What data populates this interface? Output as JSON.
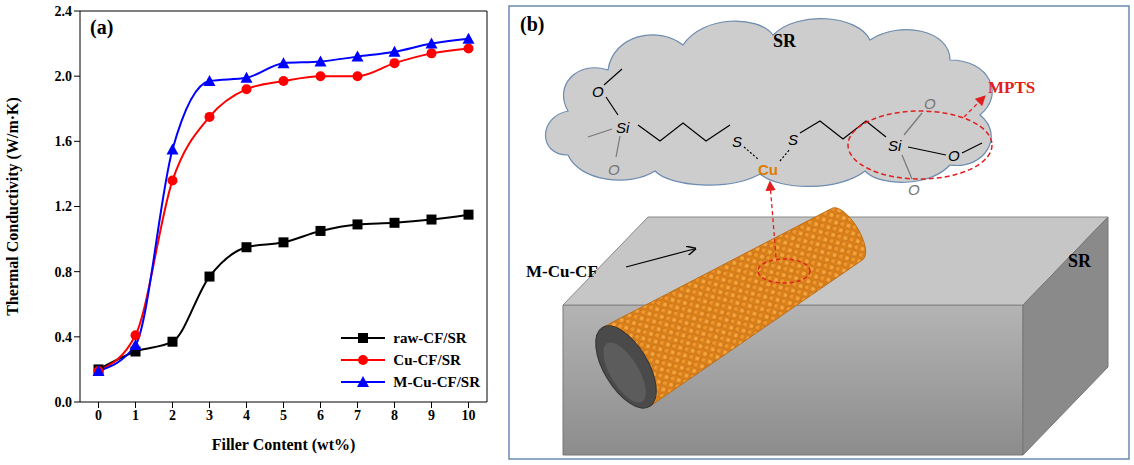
{
  "chart_data": {
    "type": "line",
    "title": "(a)",
    "x_label": "Filler Content (wt%)",
    "y_label": "Thermal Conductivity (W/m·K)",
    "x": [
      0,
      1,
      2,
      3,
      4,
      5,
      6,
      7,
      8,
      9,
      10
    ],
    "xlim": [
      -0.5,
      10.5
    ],
    "xticks": [
      0,
      1,
      2,
      3,
      4,
      5,
      6,
      7,
      8,
      9,
      10
    ],
    "ylim": [
      0,
      2.4
    ],
    "yticks": [
      {
        "value": 0,
        "label": "0.0"
      },
      0.4,
      0.8,
      1.2,
      1.6,
      {
        "value": 2,
        "label": "2.0"
      },
      2.4
    ],
    "grid": false,
    "legend": "lower right",
    "series": [
      {
        "name": "raw-CF/SR",
        "color": "#000000",
        "marker": "square",
        "line_style": "solid",
        "values": [
          0.2,
          0.31,
          0.37,
          0.77,
          0.95,
          0.98,
          1.05,
          1.09,
          1.1,
          1.12,
          1.15
        ]
      },
      {
        "name": "Cu-CF/SR",
        "color": "#ff0000",
        "marker": "circle",
        "line_style": "solid",
        "values": [
          0.19,
          0.41,
          1.36,
          1.75,
          1.92,
          1.97,
          2.0,
          2.0,
          2.08,
          2.14,
          2.17
        ]
      },
      {
        "name": "M-Cu-CF/SR",
        "color": "#0000ff",
        "marker": "triangle",
        "line_style": "solid",
        "values": [
          0.19,
          0.35,
          1.55,
          1.97,
          1.99,
          2.08,
          2.09,
          2.12,
          2.15,
          2.2,
          2.23
        ]
      }
    ]
  },
  "diagram": {
    "panel_label": "(b)",
    "matrix_label": "SR",
    "slab_label": "SR",
    "fiber_label": "M-Cu-CF",
    "coupling_agent_label": "MPTS",
    "molecule": {
      "silicon": "Si",
      "oxygen": "O",
      "sulfur": "S",
      "metal": "Cu"
    }
  }
}
